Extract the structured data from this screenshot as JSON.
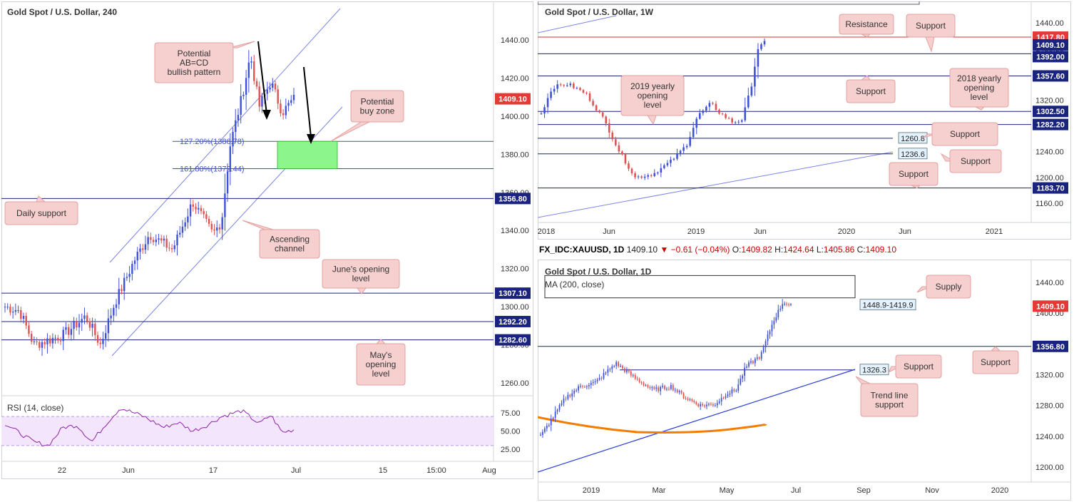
{
  "charts": [
    {
      "title": "Gold Spot / U.S. Dollar, 240",
      "type": "candlestick",
      "y_ticks": [
        "1440.00",
        "1420.00",
        "1400.00",
        "1380.00",
        "1360.00",
        "1340.00",
        "1320.00",
        "1300.00",
        "1280.00",
        "1260.00"
      ],
      "x_ticks": [
        "22",
        "Jun",
        "17",
        "Jul",
        "15",
        "15:00",
        "Aug"
      ],
      "price_boxes": [
        {
          "value": "1409.10",
          "color": "#e53935"
        },
        {
          "value": "1356.80",
          "color": "#1a237e"
        },
        {
          "value": "1307.10",
          "color": "#1a237e"
        },
        {
          "value": "1292.20",
          "color": "#1a237e"
        },
        {
          "value": "1282.60",
          "color": "#1a237e"
        }
      ],
      "fib_labels": [
        "127.20%(1386.78)",
        "161.80%(1372.44)"
      ],
      "annotations": [
        "Potential AB=CD bullish pattern",
        "Potential buy zone",
        "Daily support",
        "Ascending channel",
        "June's opening level",
        "May's opening level"
      ],
      "rsi": {
        "label": "RSI (14, close)",
        "ticks": [
          "75.00",
          "50.00",
          "25.00"
        ]
      }
    },
    {
      "title": "Gold Spot / U.S. Dollar, 1W",
      "type": "candlestick",
      "y_ticks": [
        "1440.00",
        "1400.00",
        "1360.00",
        "1320.00",
        "1280.00",
        "1240.00",
        "1200.00",
        "1160.00"
      ],
      "x_ticks": [
        "2018",
        "Jun",
        "2019",
        "Jun",
        "2020",
        "Jun",
        "2021"
      ],
      "price_boxes": [
        {
          "value": "1417.80",
          "color": "#e53935"
        },
        {
          "value": "1409.10",
          "color": "#1a237e"
        },
        {
          "value": "1392.00",
          "color": "#1a237e"
        },
        {
          "value": "1357.60",
          "color": "#1a237e"
        },
        {
          "value": "1302.50",
          "color": "#1a237e"
        },
        {
          "value": "1282.20",
          "color": "#1a237e"
        },
        {
          "value": "1183.70",
          "color": "#1a237e"
        }
      ],
      "line_labels": [
        "1260.8",
        "1236.6"
      ],
      "annotations": [
        "Resistance",
        "Support",
        "Support",
        "2019 yearly opening level",
        "2018 yearly opening level",
        "Support",
        "Support",
        "Support"
      ]
    },
    {
      "title": "Gold Spot / U.S. Dollar, 1D",
      "type": "candlestick",
      "header": {
        "symbol": "FX_IDC:XAUUSD, 1D",
        "last": "1409.10",
        "change": "−0.61 (−0.04%)",
        "o": "1409.82",
        "h": "1424.64",
        "l": "1405.86",
        "c": "1409.10"
      },
      "ma_label": "MA (200, close)",
      "y_ticks": [
        "1440.00",
        "1400.00",
        "1360.00",
        "1320.00",
        "1280.00",
        "1240.00",
        "1200.00"
      ],
      "x_ticks": [
        "2019",
        "Mar",
        "May",
        "Jul",
        "Sep",
        "Nov",
        "2020"
      ],
      "price_boxes": [
        {
          "value": "1409.10",
          "color": "#e53935"
        },
        {
          "value": "1356.80",
          "color": "#1a237e"
        }
      ],
      "line_labels": [
        "1448.9-1419.9",
        "1326.3"
      ],
      "annotations": [
        "Supply",
        "Support",
        "Support",
        "Trend line support"
      ]
    }
  ],
  "colors": {
    "up": "#3f51d6",
    "down": "#e05252",
    "level": "#1a237e",
    "resistance": "#d32f2f",
    "channel": "#7b85e6",
    "zone": "#8cf58c",
    "callout": "#f6cfcf",
    "callout_border": "#e3a0a0",
    "ma": "#f57c00",
    "rsi": "#8e24aa",
    "rsi_bg": "#f3e5fb"
  }
}
